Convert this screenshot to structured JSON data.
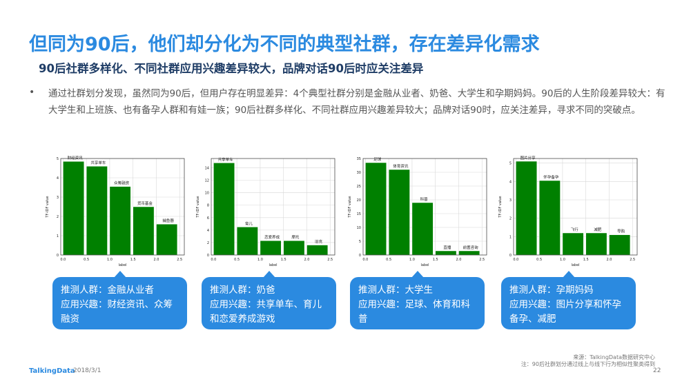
{
  "header": {
    "title": "但同为90后，他们却分化为不同的典型社群，存在差异化需求",
    "subtitle": "90后社群多样化、不同社群应用兴趣差异较大，品牌对话90后时应关注差异"
  },
  "bullet": {
    "text": "通过社群划分发现，虽然同为90后，但用户存在明显差异：4个典型社群分别是金融从业者、奶爸、大学生和孕期妈妈。90后的人生阶段差异较大：有大学生和上班族、也有备孕人群和有娃一族；90后社群多样化、不同社群应用兴趣差异较大；品牌对话90时，应关注差异，寻求不同的突破点。"
  },
  "chart_data": [
    {
      "type": "bar",
      "categories": [
        "财经资讯",
        "共享单车",
        "众筹融资",
        "货币基金",
        "捕鱼器"
      ],
      "x": [
        0,
        0.5,
        1.0,
        1.5,
        2.0
      ],
      "values": [
        4.85,
        4.6,
        3.55,
        2.5,
        1.6
      ],
      "xlabel": "label",
      "ylabel": "TF-IDF value",
      "xlim": [
        -0.05,
        2.6
      ],
      "ylim": [
        0,
        5
      ],
      "xticks": [
        "0.0",
        "0.5",
        "1.0",
        "1.5",
        "2.0",
        "2.5"
      ],
      "yticks": [
        "0",
        "1",
        "2",
        "3",
        "4",
        "5"
      ],
      "bar_color": "#008000",
      "grid": true
    },
    {
      "type": "bar",
      "categories": [
        "共享单车",
        "育儿",
        "恋爱养成",
        "摩托",
        "旧克"
      ],
      "x": [
        0,
        0.5,
        1.0,
        1.5,
        2.0
      ],
      "values": [
        14.8,
        4.5,
        2.3,
        2.3,
        1.6
      ],
      "xlabel": "label",
      "ylabel": "TF-IDF value",
      "xlim": [
        -0.05,
        2.6
      ],
      "ylim": [
        0,
        15.5
      ],
      "xticks": [
        "0.0",
        "0.5",
        "1.0",
        "1.5",
        "2.0",
        "2.5"
      ],
      "yticks": [
        "0",
        "2",
        "4",
        "6",
        "8",
        "10",
        "12",
        "14"
      ],
      "bar_color": "#008000",
      "grid": true
    },
    {
      "type": "bar",
      "categories": [
        "足球",
        "体育资讯",
        "科普",
        "直播",
        "前置咨询"
      ],
      "x": [
        0,
        0.5,
        1.0,
        1.5,
        2.0
      ],
      "values": [
        33.5,
        31,
        19,
        1.5,
        1.5
      ],
      "xlabel": "label",
      "ylabel": "TF-IDF value",
      "xlim": [
        -0.05,
        2.6
      ],
      "ylim": [
        0,
        35
      ],
      "xticks": [
        "0.0",
        "0.5",
        "1.0",
        "1.5",
        "2.0",
        "2.5"
      ],
      "yticks": [
        "0",
        "5",
        "10",
        "15",
        "20",
        "25",
        "30",
        "35"
      ],
      "bar_color": "#008000",
      "grid": true
    },
    {
      "type": "bar",
      "categories": [
        "图片分享",
        "怀孕备孕",
        "飞行",
        "减肥",
        "导购"
      ],
      "x": [
        0,
        0.5,
        1.0,
        1.5,
        2.0
      ],
      "values": [
        5.1,
        4.05,
        1.2,
        1.2,
        1.1
      ],
      "xlabel": "label",
      "ylabel": "TF-IDF value",
      "xlim": [
        -0.05,
        2.6
      ],
      "ylim": [
        0,
        5.25
      ],
      "xticks": [
        "0.0",
        "0.5",
        "1.0",
        "1.5",
        "2.0",
        "2.5"
      ],
      "yticks": [
        "0",
        "1",
        "2",
        "3",
        "4",
        "5"
      ],
      "bar_color": "#008000",
      "grid": true
    }
  ],
  "callouts": [
    {
      "line1": "推测人群：金融从业者",
      "line2": "应用兴趣：财经资讯、众筹融资"
    },
    {
      "line1": "推测人群：奶爸",
      "line2": "应用兴趣：共享单车、育儿和恋爱养成游戏"
    },
    {
      "line1": "推测人群：大学生",
      "line2": "应用兴趣：足球、体育和科普"
    },
    {
      "line1": "推测人群：孕期妈妈",
      "line2": "应用兴趣：图片分享和怀孕备孕、减肥"
    }
  ],
  "footer": {
    "logo": "TalkingData",
    "date": "2018/3/1",
    "source_line1": "来源：TalkingData数据研究中心",
    "source_line2": "注：90后社群划分通过线上与线下行为相似性聚类得到",
    "page": "22"
  },
  "colors": {
    "accent": "#2b8ae0",
    "bar": "#008000",
    "subtitle": "#1f3d66"
  }
}
